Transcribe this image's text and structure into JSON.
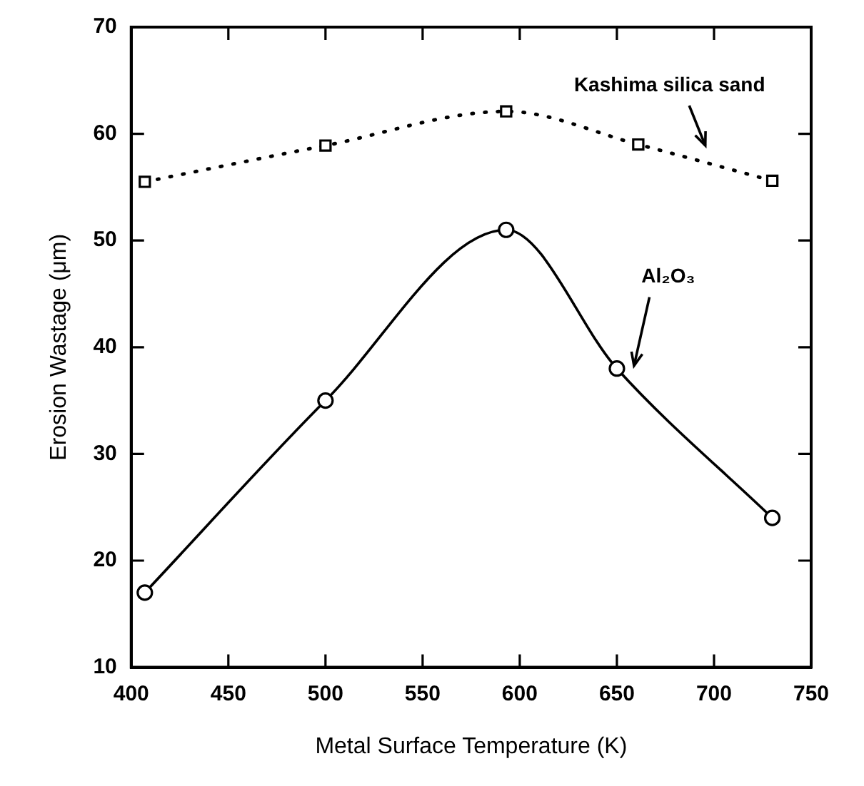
{
  "chart_data": {
    "type": "line",
    "xlabel": "Metal Surface Temperature (K)",
    "ylabel": "Erosion Wastage (μm)",
    "xlim": [
      400,
      750
    ],
    "xticks": [
      400,
      450,
      500,
      550,
      600,
      650,
      700,
      750
    ],
    "ylim": [
      10,
      70
    ],
    "yticks": [
      10,
      20,
      30,
      40,
      50,
      60,
      70
    ],
    "grid": false,
    "legend": false,
    "series": [
      {
        "name": "Kashima silica sand",
        "color": "#000000",
        "marker": "square",
        "line_style": "dotted",
        "x": [
          407,
          500,
          593,
          661,
          730
        ],
        "values": [
          55.5,
          58.9,
          62.1,
          59,
          55.6
        ]
      },
      {
        "name": "Al₂O₃",
        "color": "#000000",
        "marker": "circle",
        "line_style": "solid",
        "x": [
          407,
          500,
          593,
          650,
          730
        ],
        "values": [
          17,
          35,
          51,
          38,
          24
        ]
      }
    ]
  }
}
